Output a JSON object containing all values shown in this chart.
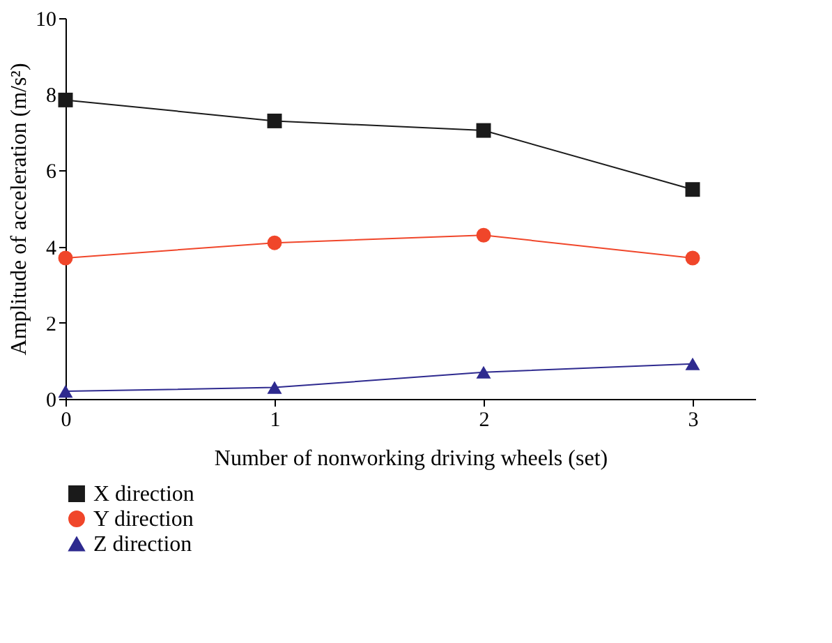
{
  "chart_data": {
    "type": "line",
    "xlabel": "Number of nonworking driving wheels (set)",
    "ylabel": "Amplitude of acceleration (m/s²)",
    "x": [
      0,
      1,
      2,
      3
    ],
    "xlim": [
      0,
      3.3
    ],
    "xticks": [
      0,
      1,
      2,
      3
    ],
    "ylim": [
      0,
      10
    ],
    "yticks": [
      0,
      2,
      4,
      6,
      8,
      10
    ],
    "grid": false,
    "legend": "bottom left",
    "line_style": "solid",
    "series": [
      {
        "name": "X direction",
        "color": "#1a1a1a",
        "marker": "square",
        "values": [
          7.85,
          7.3,
          7.05,
          5.5
        ]
      },
      {
        "name": "Y direction",
        "color": "#f0462a",
        "marker": "circle",
        "values": [
          3.7,
          4.1,
          4.3,
          3.7
        ]
      },
      {
        "name": "Z direction",
        "color": "#2e2a8f",
        "marker": "triangle",
        "values": [
          0.2,
          0.3,
          0.7,
          0.92
        ]
      }
    ]
  }
}
